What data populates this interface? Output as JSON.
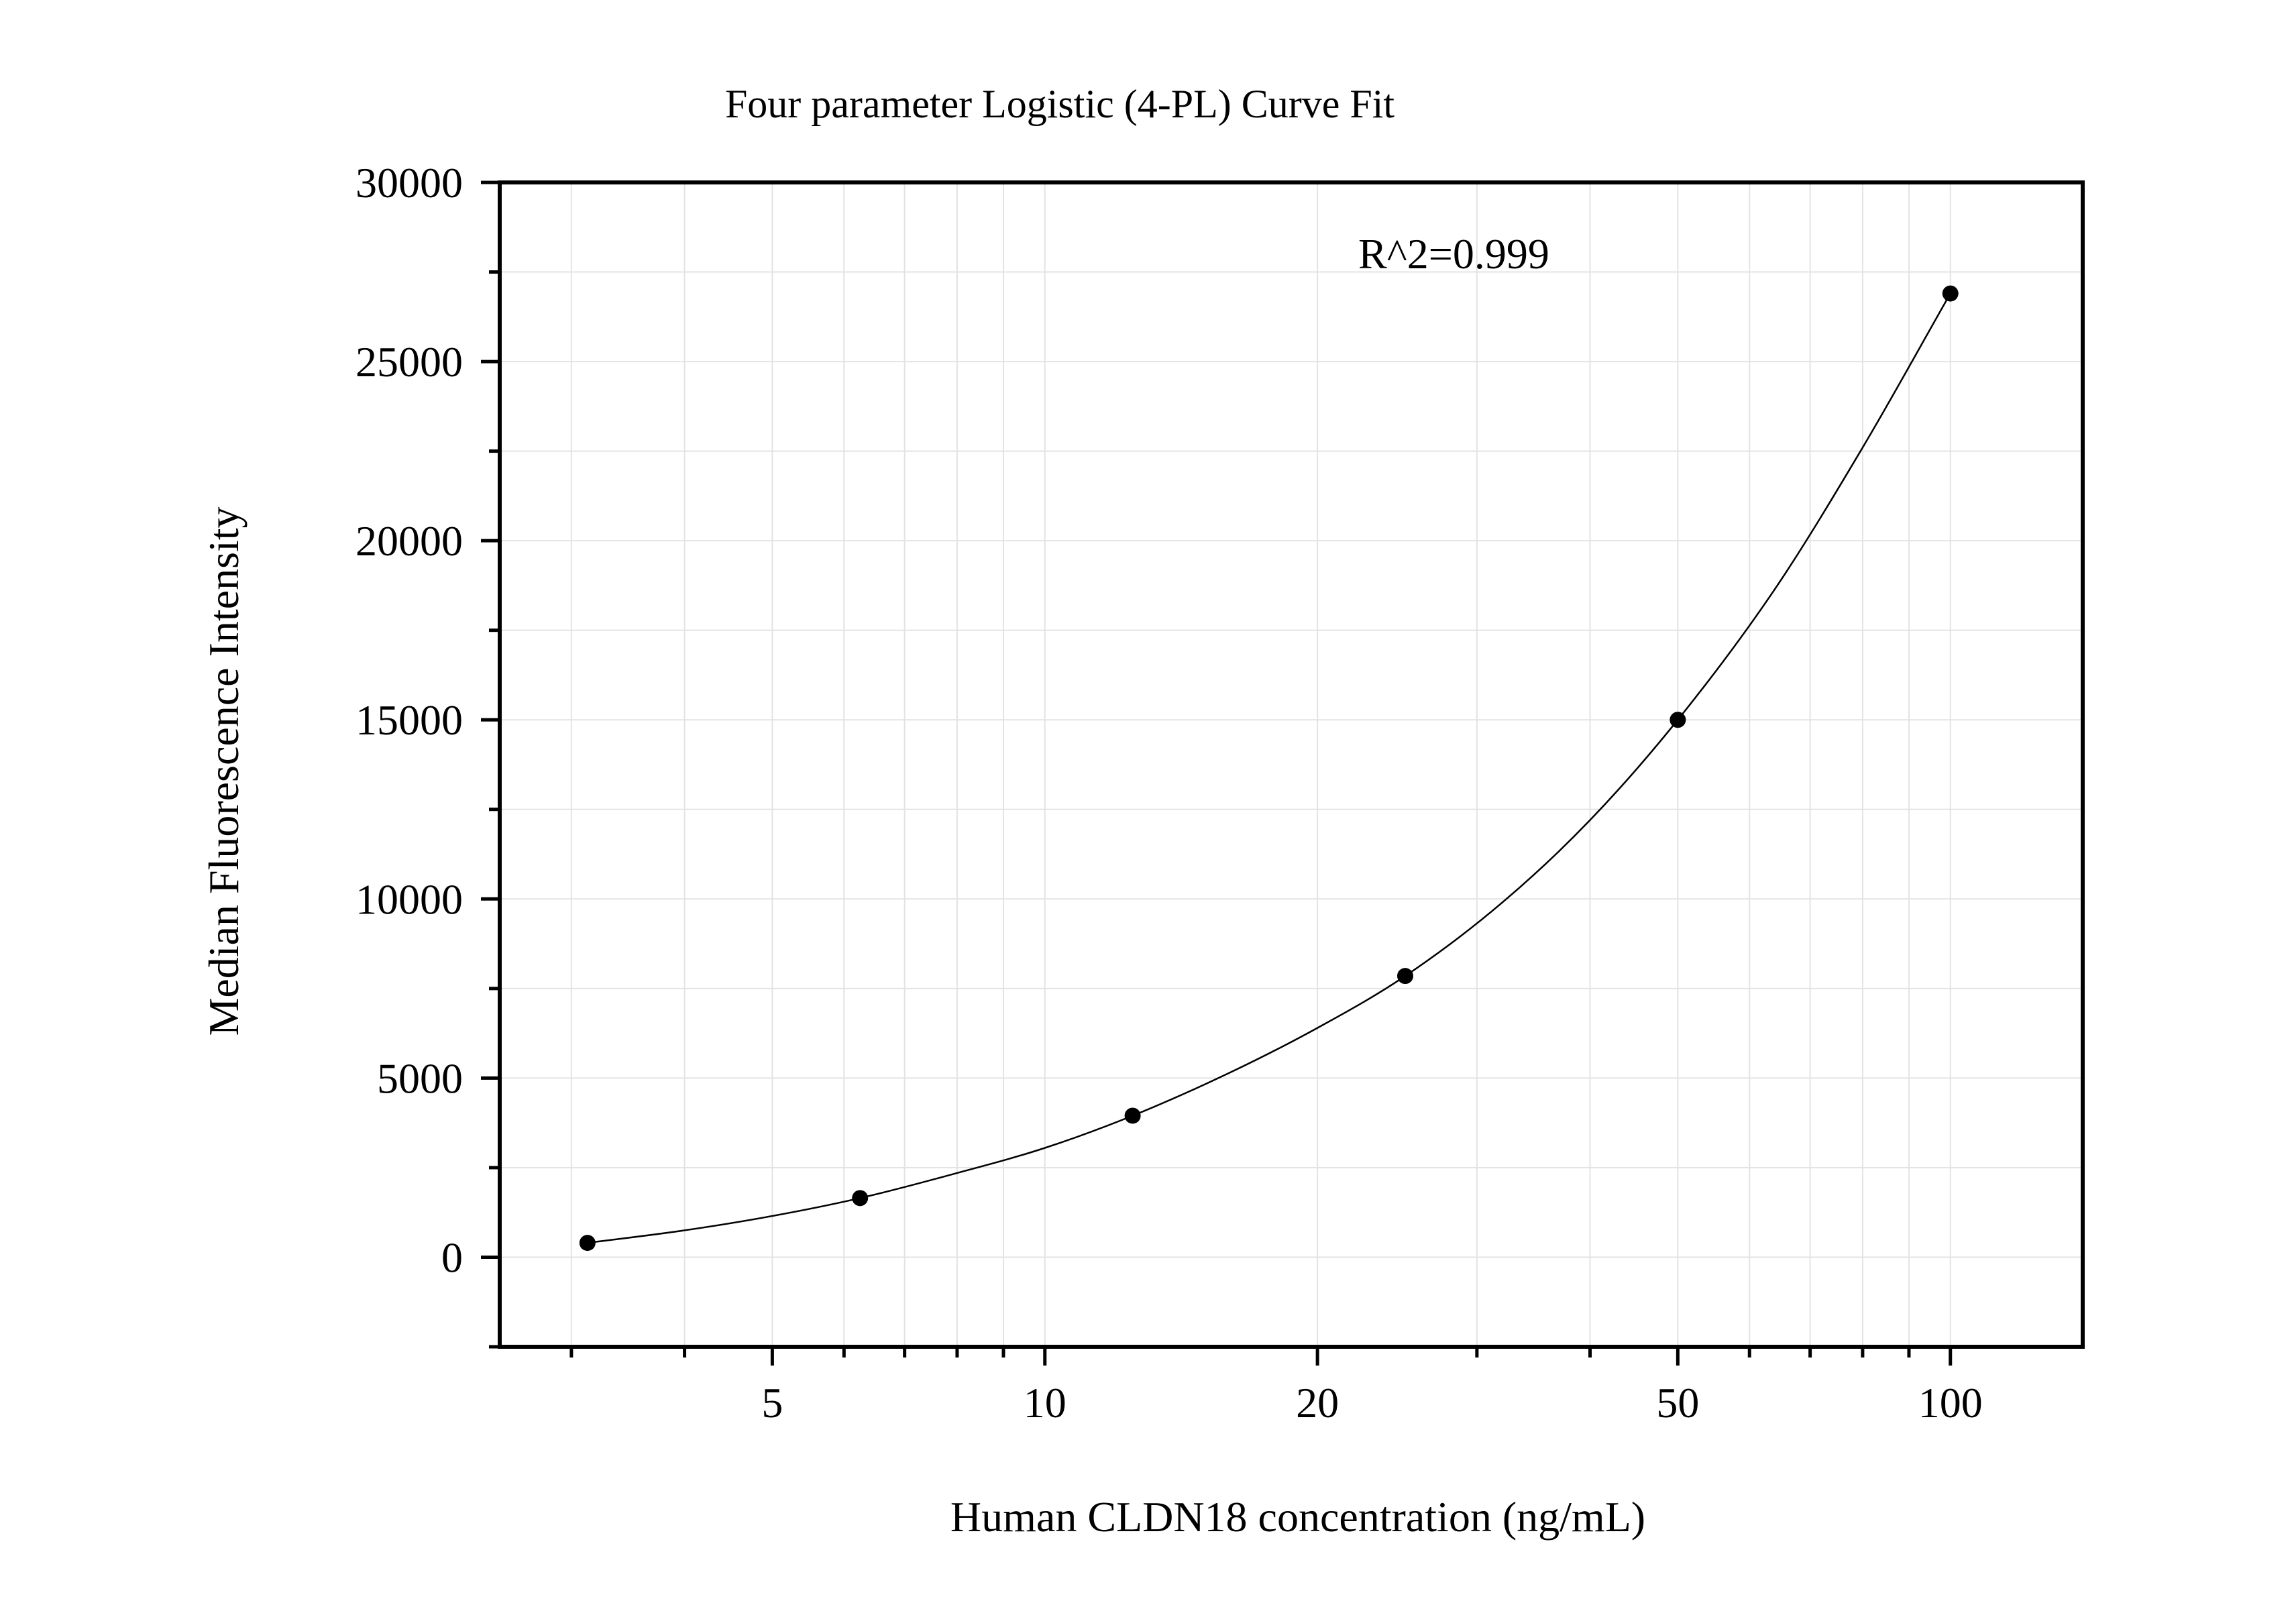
{
  "chart_data": {
    "type": "scatter",
    "title": "Four parameter Logistic (4-PL) Curve Fit",
    "xlabel": "Human CLDN18 concentration (ng/mL)",
    "ylabel": "Median Fluorescence Intensity",
    "xscale": "log",
    "xlim": [
      2.5,
      140
    ],
    "ylim": [
      -2500,
      30000
    ],
    "x_ticks": [
      5,
      10,
      20,
      50,
      100
    ],
    "y_ticks": [
      0,
      5000,
      10000,
      15000,
      20000,
      25000,
      30000
    ],
    "grid": true,
    "annotation": "R^2=0.999",
    "series": [
      {
        "x": [
          3.125,
          6.25,
          12.5,
          25,
          50,
          100
        ],
        "y": [
          400,
          1650,
          3950,
          7850,
          15000,
          26900
        ]
      }
    ],
    "fit_curve": {
      "x": [
        3.125,
        4,
        5,
        6.25,
        8,
        10,
        12.5,
        16,
        20,
        25,
        32,
        40,
        50,
        64,
        80,
        100
      ],
      "y": [
        400,
        750,
        1150,
        1650,
        2350,
        3050,
        3950,
        5150,
        6400,
        7850,
        9900,
        12200,
        15000,
        18650,
        22600,
        26900
      ]
    }
  }
}
